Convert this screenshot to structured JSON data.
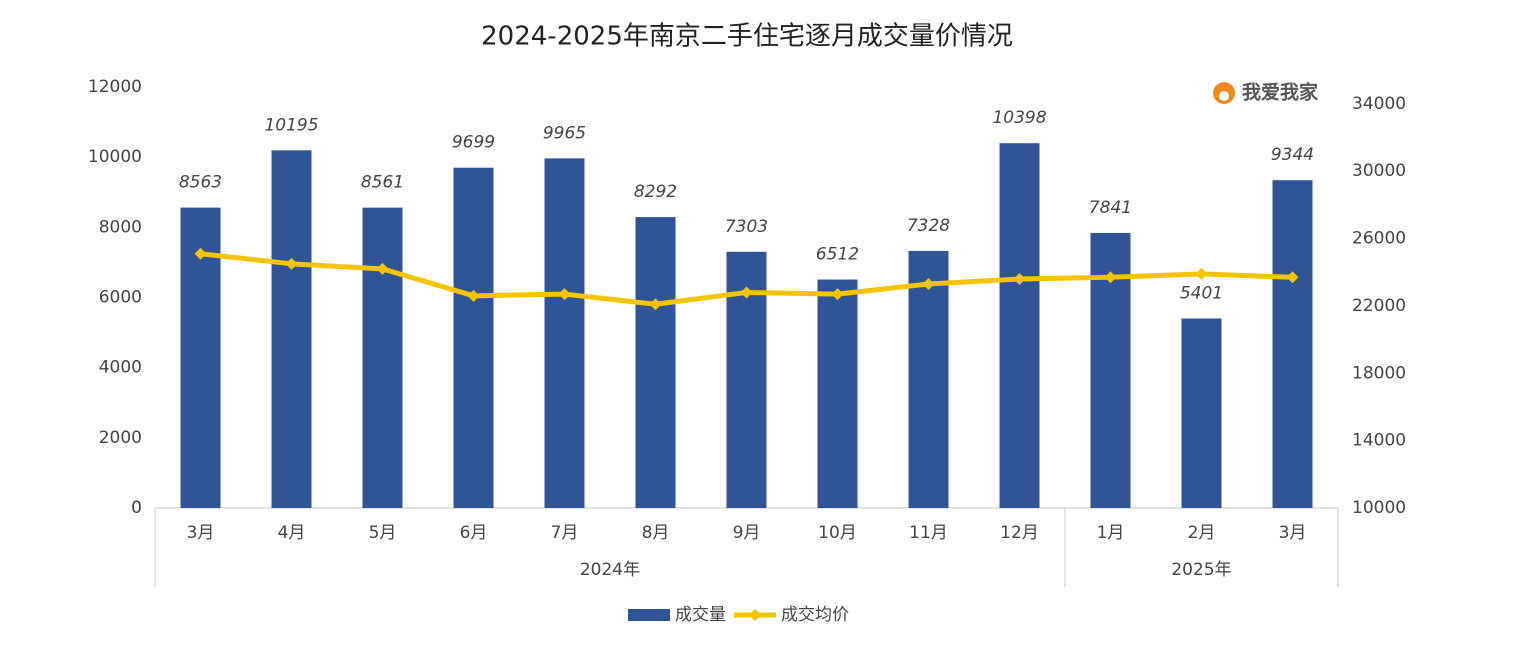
{
  "chart_data": {
    "type": "bar_line",
    "title": "2024-2025年南京二手住宅逐月成交量价情况",
    "watermark": "我爱我家",
    "groups": [
      {
        "name": "2024年",
        "categories": [
          "3月",
          "4月",
          "5月",
          "6月",
          "7月",
          "8月",
          "9月",
          "10月",
          "11月",
          "12月"
        ]
      },
      {
        "name": "2025年",
        "categories": [
          "1月",
          "2月",
          "3月"
        ]
      }
    ],
    "series": [
      {
        "name": "成交量",
        "type": "bar",
        "color": "#2f5597",
        "values": [
          8563,
          10195,
          8561,
          9699,
          9965,
          8292,
          7303,
          6512,
          7328,
          10398,
          7841,
          5401,
          9344
        ]
      },
      {
        "name": "成交均价",
        "type": "line",
        "axis": "y2",
        "color": "#f5c400",
        "values": [
          25100,
          24500,
          24200,
          22600,
          22700,
          22100,
          22800,
          22700,
          23300,
          23600,
          23700,
          23900,
          23700
        ]
      }
    ],
    "ylim": [
      0,
      12000
    ],
    "yticks": [
      0,
      2000,
      4000,
      6000,
      8000,
      10000,
      12000
    ],
    "y2lim": [
      10000,
      35000
    ],
    "y2ticks": [
      10000,
      14000,
      18000,
      22000,
      26000,
      30000,
      34000
    ]
  }
}
